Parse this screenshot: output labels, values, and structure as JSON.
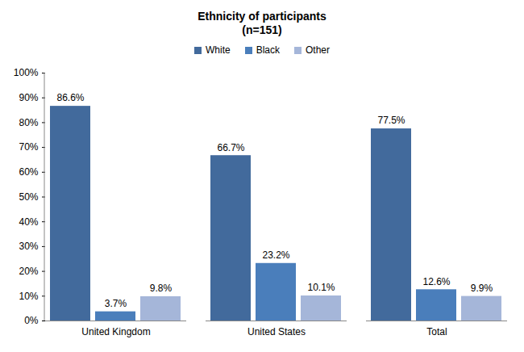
{
  "chart_data": {
    "type": "bar",
    "title": "Ethnicity of participants",
    "subtitle": "(n=151)",
    "categories": [
      "United Kingdom",
      "United States",
      "Total"
    ],
    "series": [
      {
        "name": "White",
        "color": "#426A9C",
        "values": [
          86.6,
          66.7,
          77.5
        ],
        "value_labels": [
          "86.6%",
          "66.7%",
          "77.5%"
        ]
      },
      {
        "name": "Black",
        "color": "#4A7EBB",
        "values": [
          3.7,
          23.2,
          12.6
        ],
        "value_labels": [
          "3.7%",
          "23.2%",
          "12.6%"
        ]
      },
      {
        "name": "Other",
        "color": "#A5B6D9",
        "values": [
          9.8,
          10.1,
          9.9
        ],
        "value_labels": [
          "9.8%",
          "10.1%",
          "9.9%"
        ]
      }
    ],
    "ylim": [
      0,
      100
    ],
    "yticks": [
      {
        "value": 0,
        "label": "0%"
      },
      {
        "value": 10,
        "label": "10%"
      },
      {
        "value": 20,
        "label": "20%"
      },
      {
        "value": 30,
        "label": "30%"
      },
      {
        "value": 40,
        "label": "40%"
      },
      {
        "value": 50,
        "label": "50%"
      },
      {
        "value": 60,
        "label": "60%"
      },
      {
        "value": 70,
        "label": "70%"
      },
      {
        "value": 80,
        "label": "80%"
      },
      {
        "value": 90,
        "label": "90%"
      },
      {
        "value": 100,
        "label": "100%"
      }
    ],
    "legend": "top",
    "grid": false,
    "data_labels": true
  }
}
